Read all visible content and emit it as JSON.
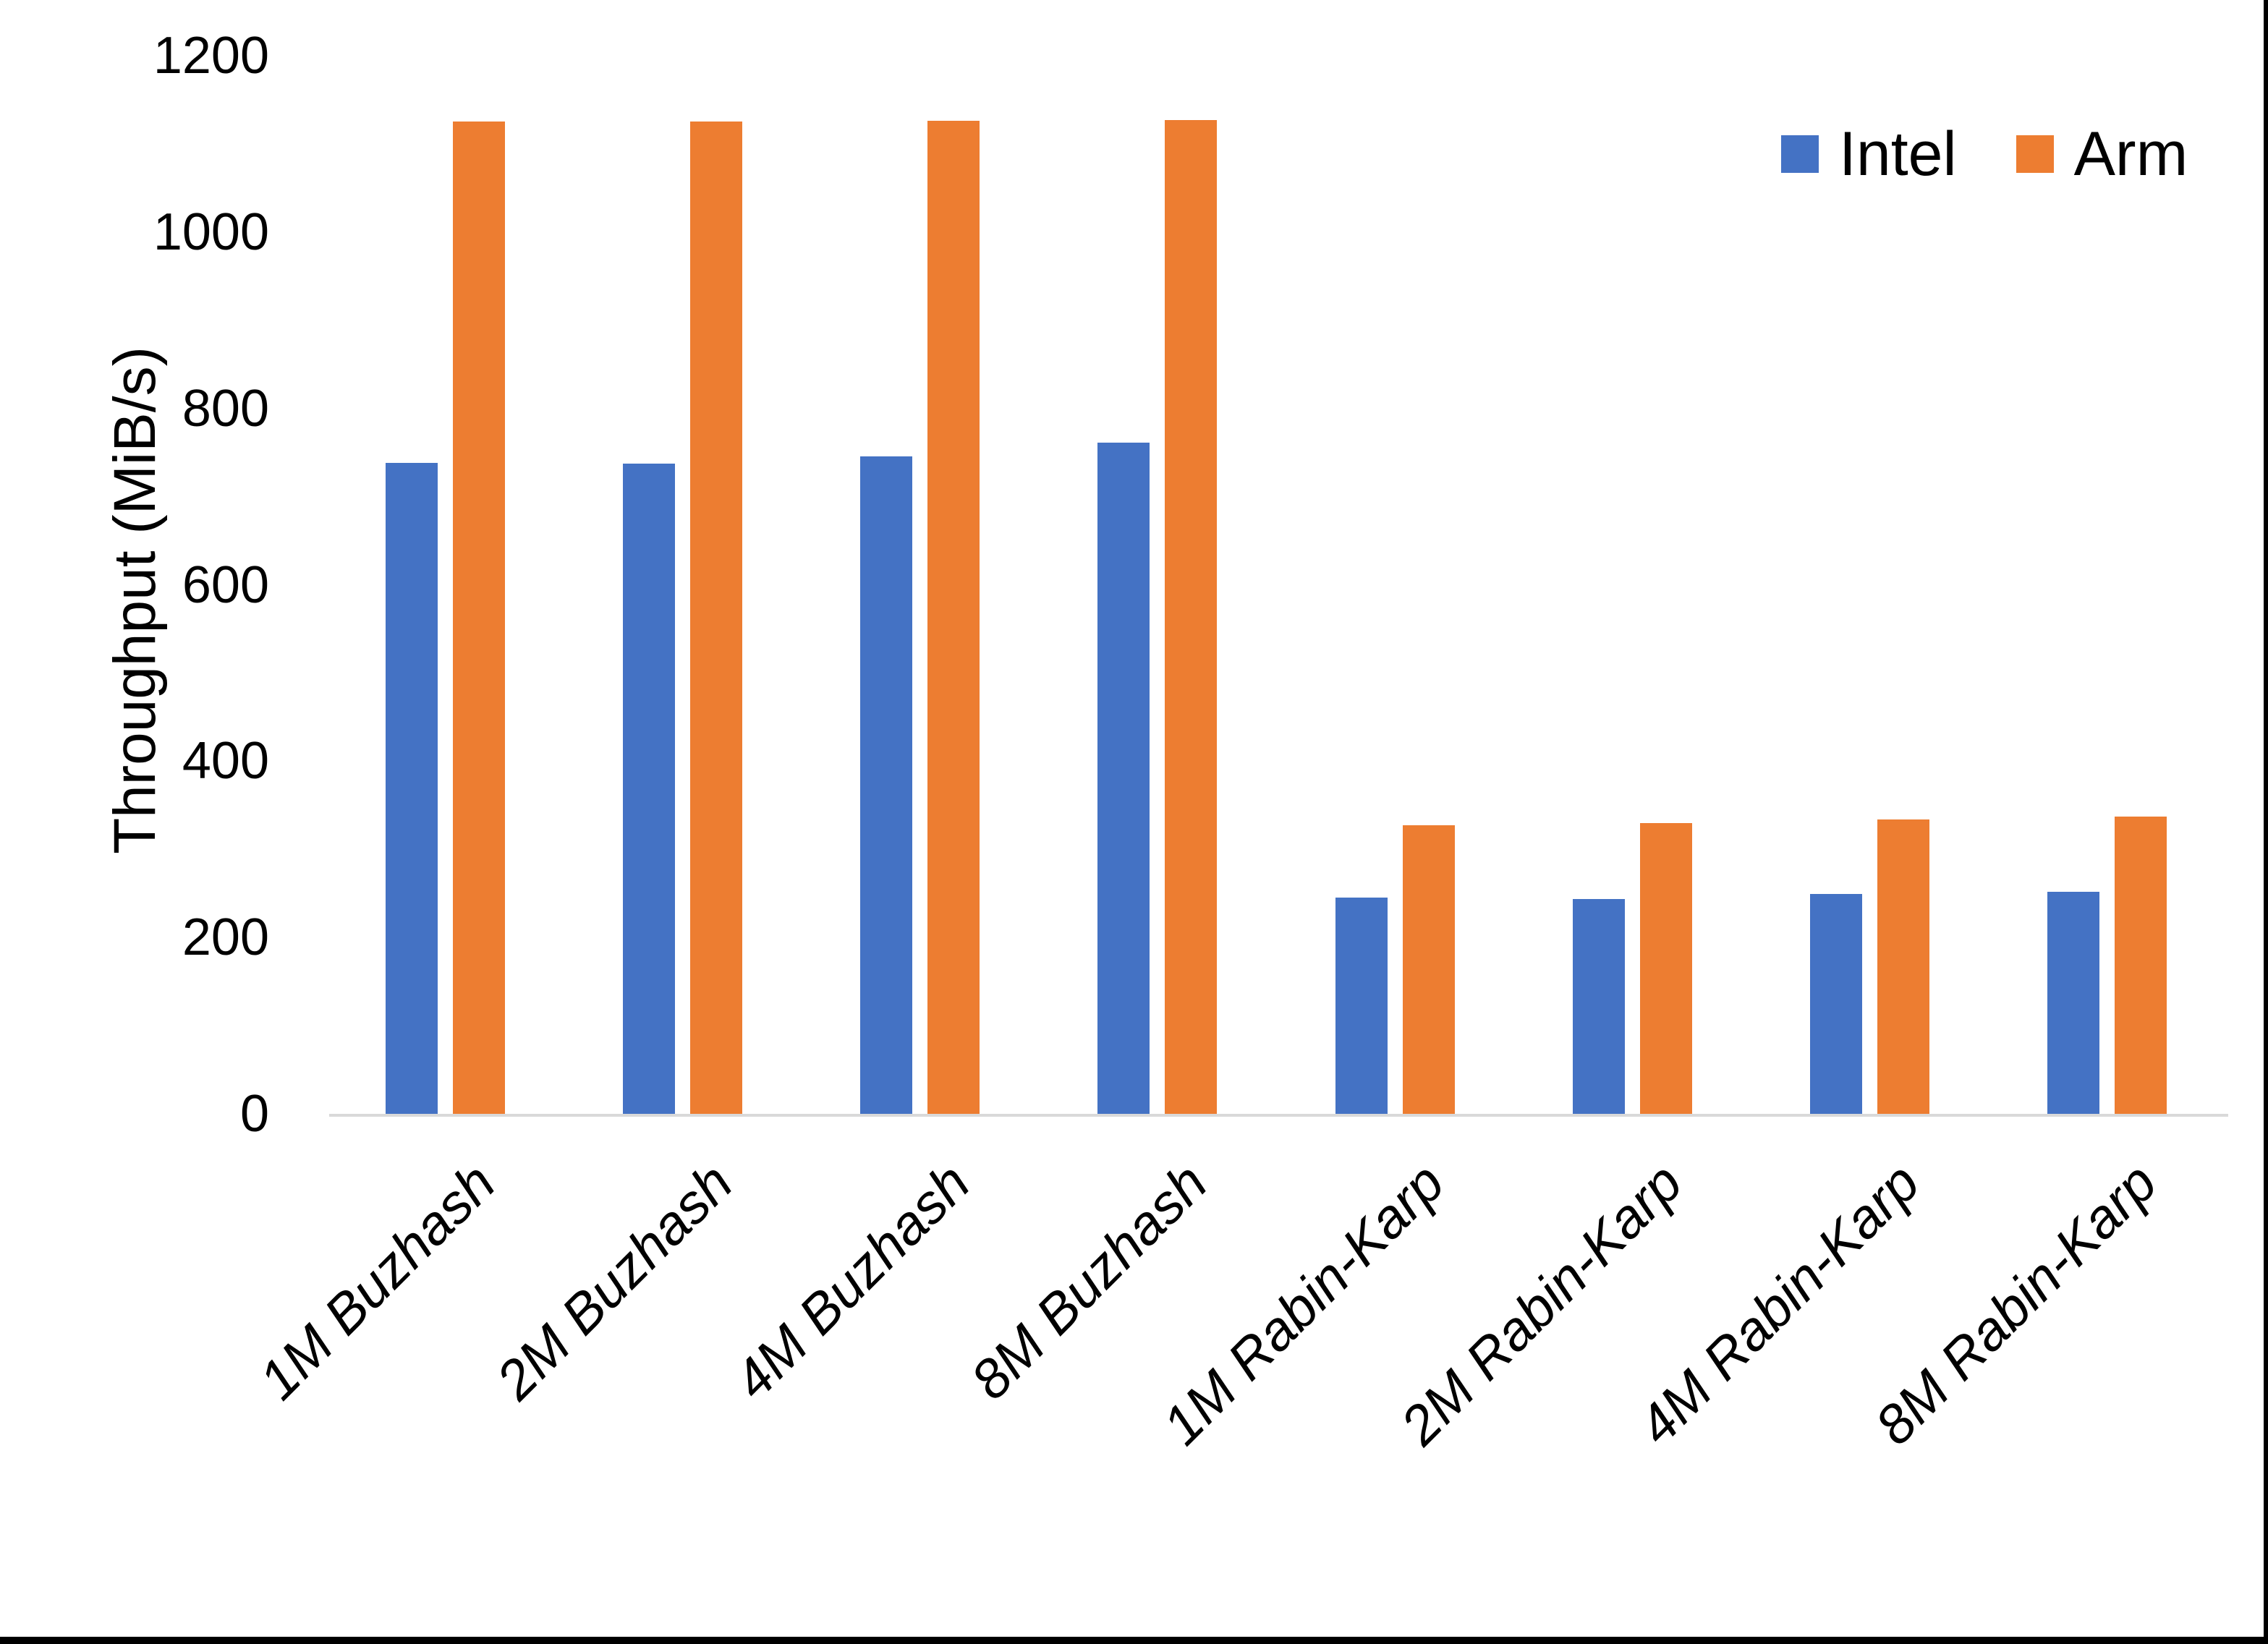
{
  "chart_data": {
    "type": "bar",
    "title": "",
    "ylabel": "Throughput (MiB/s)",
    "xlabel": "",
    "ylim": [
      0,
      1200
    ],
    "yticks": [
      "0",
      "200",
      "400",
      "600",
      "800",
      "1000",
      "1200"
    ],
    "grid": "off",
    "legend_position": "top-right",
    "xtick_rotation_deg": 45,
    "axis_line_color": "#d9d9d9",
    "categories": [
      "1M Buzhash",
      "2M Buzhash",
      "4M Buzhash",
      "8M Buzhash",
      "1M Rabin-Karp",
      "2M Rabin-Karp",
      "4M Rabin-Karp",
      "8M Rabin-Karp"
    ],
    "series": [
      {
        "name": "Intel",
        "color": "#4472C4",
        "values": [
          738,
          737,
          746,
          761,
          245,
          244,
          249,
          252
        ]
      },
      {
        "name": "Arm",
        "color": "#ED7D31",
        "values": [
          1125,
          1125,
          1126,
          1127,
          327,
          330,
          334,
          337
        ]
      }
    ]
  }
}
